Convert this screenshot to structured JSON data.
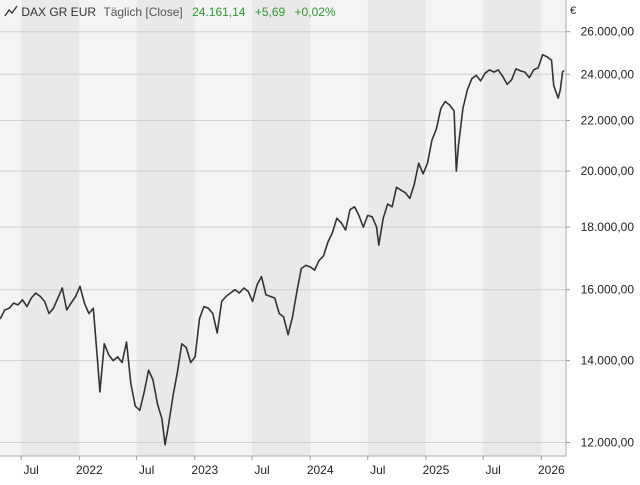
{
  "header": {
    "name": "DAX GR EUR",
    "interval": "Täglich [Close]",
    "last": "24.161,14",
    "change": "+5,69",
    "change_pct": "+0,02%",
    "positive_color": "#2e9a2e"
  },
  "axis": {
    "currency": "€",
    "y_ticks": [
      "12.000,00",
      "14.000,00",
      "16.000,00",
      "18.000,00",
      "20.000,00",
      "22.000,00",
      "24.000,00",
      "26.000,00"
    ],
    "x_ticks": [
      "Jul",
      "2022",
      "Jul",
      "2023",
      "Jul",
      "2024",
      "Jul",
      "2025",
      "Jul",
      "2026"
    ]
  },
  "chart_data": {
    "type": "line",
    "scale": "log",
    "ylim": [
      11700,
      27600
    ],
    "xlim": [
      "2021-04-25",
      "2026-03-20"
    ],
    "grid": true,
    "line_color": "#333333",
    "band_colors": [
      "#f4f4f4",
      "#e9e9e9"
    ],
    "y_ticks": [
      12000,
      14000,
      16000,
      18000,
      20000,
      22000,
      24000,
      26000
    ],
    "x_tick_dates": [
      "2021-07-01",
      "2022-01-01",
      "2022-07-01",
      "2023-01-01",
      "2023-07-01",
      "2024-01-01",
      "2024-07-01",
      "2025-01-01",
      "2025-07-01",
      "2026-01-01"
    ],
    "series": [
      {
        "x": [
          "2021-04-26",
          "2021-05-10",
          "2021-05-24",
          "2021-06-07",
          "2021-06-21",
          "2021-07-05",
          "2021-07-19",
          "2021-08-02",
          "2021-08-16",
          "2021-08-30",
          "2021-09-13",
          "2021-09-27",
          "2021-10-11",
          "2021-10-25",
          "2021-11-08",
          "2021-11-22",
          "2021-12-06",
          "2021-12-20",
          "2022-01-03",
          "2022-01-17",
          "2022-01-31",
          "2022-02-14",
          "2022-02-28",
          "2022-03-07",
          "2022-03-21",
          "2022-04-04",
          "2022-04-18",
          "2022-05-02",
          "2022-05-16",
          "2022-05-30",
          "2022-06-13",
          "2022-06-27",
          "2022-07-11",
          "2022-07-25",
          "2022-08-08",
          "2022-08-22",
          "2022-09-05",
          "2022-09-19",
          "2022-09-29",
          "2022-10-10",
          "2022-10-24",
          "2022-11-07",
          "2022-11-21",
          "2022-12-05",
          "2022-12-19",
          "2023-01-02",
          "2023-01-16",
          "2023-01-30",
          "2023-02-13",
          "2023-02-27",
          "2023-03-13",
          "2023-03-27",
          "2023-04-10",
          "2023-04-24",
          "2023-05-08",
          "2023-05-22",
          "2023-06-05",
          "2023-06-19",
          "2023-07-03",
          "2023-07-17",
          "2023-07-31",
          "2023-08-14",
          "2023-08-28",
          "2023-09-11",
          "2023-09-25",
          "2023-10-09",
          "2023-10-23",
          "2023-11-06",
          "2023-11-20",
          "2023-12-04",
          "2023-12-18",
          "2024-01-01",
          "2024-01-15",
          "2024-01-29",
          "2024-02-12",
          "2024-02-26",
          "2024-03-11",
          "2024-03-25",
          "2024-04-08",
          "2024-04-22",
          "2024-05-06",
          "2024-05-20",
          "2024-06-03",
          "2024-06-17",
          "2024-07-01",
          "2024-07-15",
          "2024-07-29",
          "2024-08-05",
          "2024-08-19",
          "2024-09-02",
          "2024-09-16",
          "2024-09-30",
          "2024-10-14",
          "2024-10-28",
          "2024-11-11",
          "2024-11-25",
          "2024-12-09",
          "2024-12-23",
          "2025-01-06",
          "2025-01-20",
          "2025-02-03",
          "2025-02-17",
          "2025-03-03",
          "2025-03-17",
          "2025-03-31",
          "2025-04-07",
          "2025-04-14",
          "2025-04-28",
          "2025-05-12",
          "2025-05-26",
          "2025-06-09",
          "2025-06-23",
          "2025-07-07",
          "2025-07-21",
          "2025-08-04",
          "2025-08-18",
          "2025-09-01",
          "2025-09-15",
          "2025-09-29",
          "2025-10-13",
          "2025-10-27",
          "2025-11-10",
          "2025-11-24",
          "2025-12-08",
          "2025-12-22",
          "2026-01-05",
          "2026-01-19",
          "2026-02-02",
          "2026-02-09",
          "2026-02-23",
          "2026-03-02",
          "2026-03-09",
          "2026-03-13"
        ],
        "y": [
          15150,
          15400,
          15450,
          15600,
          15550,
          15700,
          15500,
          15750,
          15900,
          15800,
          15650,
          15300,
          15450,
          15750,
          16050,
          15400,
          15600,
          15800,
          16100,
          15600,
          15300,
          15450,
          13950,
          13200,
          14450,
          14150,
          14000,
          14100,
          13950,
          14500,
          13400,
          12850,
          12750,
          13200,
          13750,
          13500,
          12900,
          12550,
          11950,
          12400,
          13100,
          13700,
          14450,
          14350,
          13950,
          14100,
          15150,
          15500,
          15450,
          15300,
          14750,
          15650,
          15800,
          15900,
          16000,
          15900,
          16050,
          15950,
          15650,
          16150,
          16400,
          15850,
          15800,
          15750,
          15300,
          15200,
          14700,
          15200,
          15950,
          16650,
          16750,
          16700,
          16600,
          16900,
          17050,
          17500,
          17800,
          18300,
          18150,
          17900,
          18600,
          18700,
          18400,
          18000,
          18400,
          18350,
          18000,
          17400,
          18300,
          18800,
          18700,
          19400,
          19300,
          19200,
          19000,
          19500,
          20300,
          19900,
          20300,
          21200,
          21650,
          22500,
          22800,
          22650,
          22400,
          20000,
          21000,
          22500,
          23300,
          23800,
          23950,
          23700,
          24050,
          24200,
          24100,
          24200,
          23900,
          23550,
          23750,
          24250,
          24150,
          24100,
          23850,
          24200,
          24300,
          24900,
          24800,
          24650,
          23500,
          22950,
          23300,
          24100,
          24161.14
        ]
      }
    ]
  }
}
